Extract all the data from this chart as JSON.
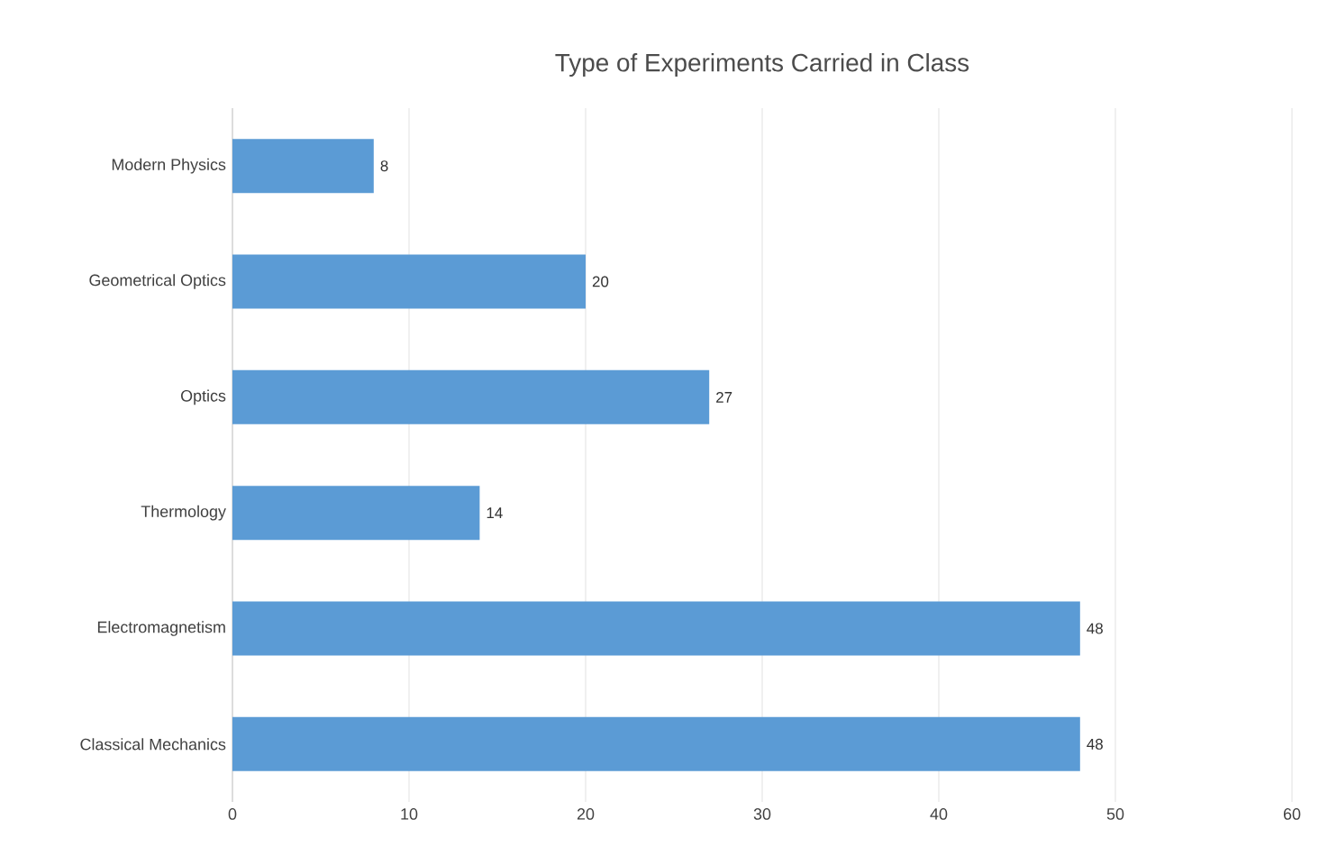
{
  "chart_data": {
    "type": "bar",
    "orientation": "horizontal",
    "title": "Type of Experiments Carried in Class",
    "categories": [
      "Modern Physics",
      "Geometrical Optics",
      "Optics",
      "Thermology",
      "Electromagnetism",
      "Classical Mechanics"
    ],
    "values": [
      8,
      20,
      27,
      14,
      48,
      48
    ],
    "color": "#5b9bd5",
    "xlim": [
      0,
      60
    ],
    "xticks": [
      0,
      10,
      20,
      30,
      40,
      50,
      60
    ],
    "grid": "x",
    "data_labels": true
  }
}
